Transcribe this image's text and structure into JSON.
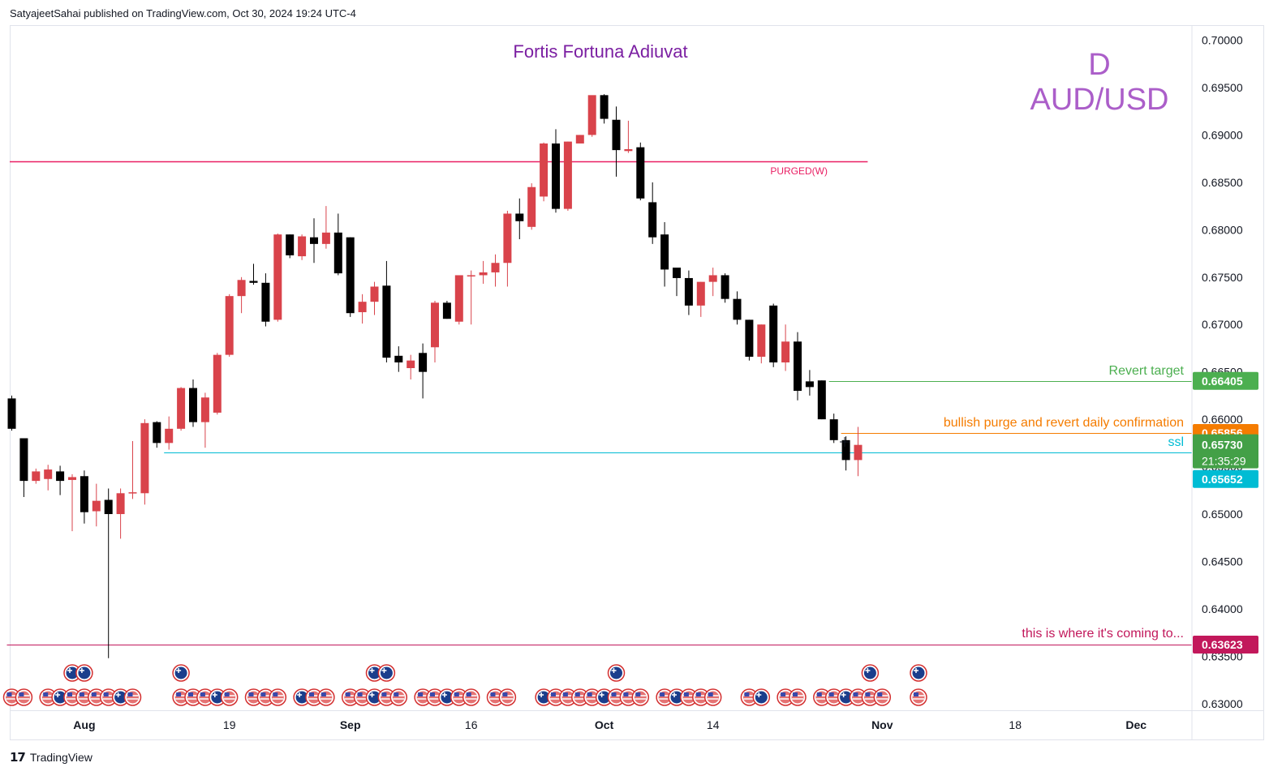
{
  "header": {
    "published_line": "SatyajeetSahai published on TradingView.com, Oct 30, 2024 19:24 UTC-4"
  },
  "footer": {
    "brand_label": "TradingView",
    "brand_icon": "tradingview-logo-icon"
  },
  "colors": {
    "bull": "#d9434b",
    "bear": "#000000",
    "purged_line": "#e91e63",
    "revert_target": "#4caf50",
    "confirmation": "#f57c00",
    "ssl": "#00bcd4",
    "target_low": "#c2185b",
    "title_purple": "#7b1fa2",
    "watermark": "#ab5ec9",
    "current_price_bg": "#43a047"
  },
  "chart_data": {
    "type": "candlestick",
    "symbol": "AUD/USD",
    "timeframe": "D",
    "title": "Fortis Fortuna Adiuvat",
    "y_axis": {
      "range": [
        0.6293,
        0.7015
      ],
      "tick_labels": [
        "0.70000",
        "0.69500",
        "0.69000",
        "0.68500",
        "0.68000",
        "0.67500",
        "0.67000",
        "0.66500",
        "0.66000",
        "0.65500",
        "0.65000",
        "0.64500",
        "0.64000",
        "0.63500",
        "0.63000"
      ],
      "tick_values": [
        0.7,
        0.695,
        0.69,
        0.685,
        0.68,
        0.675,
        0.67,
        0.665,
        0.66,
        0.655,
        0.65,
        0.645,
        0.64,
        0.635,
        0.63
      ]
    },
    "x_axis": {
      "labels": [
        {
          "text": "Aug",
          "bold": true,
          "index": 6
        },
        {
          "text": "19",
          "bold": false,
          "index": 18
        },
        {
          "text": "Sep",
          "bold": true,
          "index": 28
        },
        {
          "text": "16",
          "bold": false,
          "index": 38
        },
        {
          "text": "Oct",
          "bold": true,
          "index": 49
        },
        {
          "text": "14",
          "bold": false,
          "index": 58
        },
        {
          "text": "Nov",
          "bold": true,
          "index": 72
        },
        {
          "text": "18",
          "bold": false,
          "index": 83
        },
        {
          "text": "Dec",
          "bold": true,
          "index": 93
        }
      ]
    },
    "candles": [
      {
        "o": 0.6622,
        "h": 0.6625,
        "l": 0.6588,
        "c": 0.659
      },
      {
        "o": 0.658,
        "h": 0.658,
        "l": 0.6518,
        "c": 0.6535
      },
      {
        "o": 0.6535,
        "h": 0.6548,
        "l": 0.6532,
        "c": 0.6545
      },
      {
        "o": 0.6537,
        "h": 0.6552,
        "l": 0.6525,
        "c": 0.6547
      },
      {
        "o": 0.6545,
        "h": 0.6551,
        "l": 0.652,
        "c": 0.6535
      },
      {
        "o": 0.6536,
        "h": 0.6542,
        "l": 0.6482,
        "c": 0.6539
      },
      {
        "o": 0.654,
        "h": 0.6546,
        "l": 0.649,
        "c": 0.6502
      },
      {
        "o": 0.6503,
        "h": 0.6532,
        "l": 0.6487,
        "c": 0.6514
      },
      {
        "o": 0.6515,
        "h": 0.6527,
        "l": 0.6348,
        "c": 0.65
      },
      {
        "o": 0.65,
        "h": 0.6527,
        "l": 0.6474,
        "c": 0.6522
      },
      {
        "o": 0.6523,
        "h": 0.6577,
        "l": 0.6516,
        "c": 0.6523
      },
      {
        "o": 0.6522,
        "h": 0.66,
        "l": 0.651,
        "c": 0.6596
      },
      {
        "o": 0.6597,
        "h": 0.6598,
        "l": 0.657,
        "c": 0.6575
      },
      {
        "o": 0.6575,
        "h": 0.6603,
        "l": 0.6568,
        "c": 0.659
      },
      {
        "o": 0.659,
        "h": 0.6634,
        "l": 0.6588,
        "c": 0.6633
      },
      {
        "o": 0.6633,
        "h": 0.6642,
        "l": 0.6592,
        "c": 0.6597
      },
      {
        "o": 0.6597,
        "h": 0.6628,
        "l": 0.657,
        "c": 0.6623
      },
      {
        "o": 0.6607,
        "h": 0.667,
        "l": 0.6605,
        "c": 0.6668
      },
      {
        "o": 0.6668,
        "h": 0.6732,
        "l": 0.6666,
        "c": 0.673
      },
      {
        "o": 0.673,
        "h": 0.675,
        "l": 0.6712,
        "c": 0.6747
      },
      {
        "o": 0.6746,
        "h": 0.6764,
        "l": 0.6742,
        "c": 0.6744
      },
      {
        "o": 0.6744,
        "h": 0.6754,
        "l": 0.6698,
        "c": 0.6703
      },
      {
        "o": 0.6705,
        "h": 0.6796,
        "l": 0.6703,
        "c": 0.6795
      },
      {
        "o": 0.6795,
        "h": 0.6795,
        "l": 0.677,
        "c": 0.6773
      },
      {
        "o": 0.6772,
        "h": 0.6795,
        "l": 0.6768,
        "c": 0.6793
      },
      {
        "o": 0.6792,
        "h": 0.6812,
        "l": 0.6765,
        "c": 0.6785
      },
      {
        "o": 0.6785,
        "h": 0.6825,
        "l": 0.678,
        "c": 0.6797
      },
      {
        "o": 0.6797,
        "h": 0.6817,
        "l": 0.6752,
        "c": 0.6754
      },
      {
        "o": 0.6792,
        "h": 0.6792,
        "l": 0.6708,
        "c": 0.6712
      },
      {
        "o": 0.6713,
        "h": 0.6732,
        "l": 0.6701,
        "c": 0.6724
      },
      {
        "o": 0.6724,
        "h": 0.6745,
        "l": 0.671,
        "c": 0.674
      },
      {
        "o": 0.6741,
        "h": 0.6767,
        "l": 0.666,
        "c": 0.6665
      },
      {
        "o": 0.6667,
        "h": 0.6677,
        "l": 0.665,
        "c": 0.666
      },
      {
        "o": 0.6654,
        "h": 0.6668,
        "l": 0.6642,
        "c": 0.6662
      },
      {
        "o": 0.667,
        "h": 0.668,
        "l": 0.6622,
        "c": 0.665
      },
      {
        "o": 0.6676,
        "h": 0.6725,
        "l": 0.666,
        "c": 0.6723
      },
      {
        "o": 0.6723,
        "h": 0.6725,
        "l": 0.6706,
        "c": 0.6706
      },
      {
        "o": 0.6703,
        "h": 0.6745,
        "l": 0.67,
        "c": 0.6752
      },
      {
        "o": 0.6752,
        "h": 0.6757,
        "l": 0.67,
        "c": 0.6752
      },
      {
        "o": 0.6752,
        "h": 0.6767,
        "l": 0.6743,
        "c": 0.6755
      },
      {
        "o": 0.6755,
        "h": 0.6774,
        "l": 0.674,
        "c": 0.6765
      },
      {
        "o": 0.6765,
        "h": 0.682,
        "l": 0.674,
        "c": 0.6817
      },
      {
        "o": 0.6817,
        "h": 0.6833,
        "l": 0.679,
        "c": 0.6809
      },
      {
        "o": 0.6803,
        "h": 0.6849,
        "l": 0.68,
        "c": 0.6845
      },
      {
        "o": 0.6835,
        "h": 0.6892,
        "l": 0.683,
        "c": 0.6891
      },
      {
        "o": 0.6891,
        "h": 0.6906,
        "l": 0.6818,
        "c": 0.6822
      },
      {
        "o": 0.6822,
        "h": 0.6893,
        "l": 0.682,
        "c": 0.6893
      },
      {
        "o": 0.6891,
        "h": 0.69,
        "l": 0.6892,
        "c": 0.69
      },
      {
        "o": 0.69,
        "h": 0.694,
        "l": 0.6898,
        "c": 0.6942
      },
      {
        "o": 0.6942,
        "h": 0.6943,
        "l": 0.6912,
        "c": 0.6917
      },
      {
        "o": 0.6916,
        "h": 0.693,
        "l": 0.6856,
        "c": 0.6884
      },
      {
        "o": 0.6883,
        "h": 0.6915,
        "l": 0.6881,
        "c": 0.6885
      },
      {
        "o": 0.6887,
        "h": 0.6892,
        "l": 0.6831,
        "c": 0.6833
      },
      {
        "o": 0.6829,
        "h": 0.685,
        "l": 0.6785,
        "c": 0.6792
      },
      {
        "o": 0.6795,
        "h": 0.6808,
        "l": 0.674,
        "c": 0.6758
      },
      {
        "o": 0.676,
        "h": 0.6757,
        "l": 0.673,
        "c": 0.6749
      },
      {
        "o": 0.6749,
        "h": 0.6757,
        "l": 0.671,
        "c": 0.672
      },
      {
        "o": 0.672,
        "h": 0.6745,
        "l": 0.6708,
        "c": 0.6745
      },
      {
        "o": 0.6745,
        "h": 0.676,
        "l": 0.673,
        "c": 0.6752
      },
      {
        "o": 0.6752,
        "h": 0.6754,
        "l": 0.6723,
        "c": 0.6727
      },
      {
        "o": 0.6727,
        "h": 0.6735,
        "l": 0.67,
        "c": 0.6705
      },
      {
        "o": 0.6705,
        "h": 0.6705,
        "l": 0.6662,
        "c": 0.6666
      },
      {
        "o": 0.6666,
        "h": 0.67,
        "l": 0.6659,
        "c": 0.67
      },
      {
        "o": 0.672,
        "h": 0.6722,
        "l": 0.6655,
        "c": 0.666
      },
      {
        "o": 0.666,
        "h": 0.67,
        "l": 0.6651,
        "c": 0.6682
      },
      {
        "o": 0.6682,
        "h": 0.6692,
        "l": 0.662,
        "c": 0.663
      },
      {
        "o": 0.664,
        "h": 0.6652,
        "l": 0.6625,
        "c": 0.6634
      },
      {
        "o": 0.6641,
        "h": 0.6641,
        "l": 0.66,
        "c": 0.66
      },
      {
        "o": 0.66,
        "h": 0.6606,
        "l": 0.6575,
        "c": 0.6578
      },
      {
        "o": 0.6578,
        "h": 0.6582,
        "l": 0.6546,
        "c": 0.6557
      },
      {
        "o": 0.6557,
        "h": 0.6592,
        "l": 0.654,
        "c": 0.6573
      }
    ],
    "horizontal_lines": [
      {
        "name": "purged-line",
        "price": 0.6872,
        "label": "PURGED(W)",
        "color": "#e91e63",
        "x_end_index": 71
      },
      {
        "name": "revert-target-line",
        "price": 0.66405,
        "label": "Revert target",
        "color": "#4caf50",
        "x_start_index": 68,
        "price_label": "0.66405"
      },
      {
        "name": "confirmation-line",
        "price": 0.65856,
        "label": "bullish purge and revert daily confirmation",
        "color": "#f57c00",
        "x_start_index": 69,
        "price_label": "0.65856"
      },
      {
        "name": "ssl-line",
        "price": 0.65652,
        "label": "ssl",
        "color": "#00bcd4",
        "x_start_index": 13,
        "price_label": "0.65652"
      },
      {
        "name": "target-low-line",
        "price": 0.63623,
        "label": "this is where it's coming to...",
        "color": "#c2185b",
        "x_start_index": 0,
        "price_label": "0.63623"
      }
    ],
    "current_price": {
      "price": "0.65730",
      "countdown": "21:35:29",
      "value": 0.6573
    },
    "watermark": {
      "timeframe": "D",
      "symbol": "AUD/USD"
    },
    "event_markers": {
      "top_row_indices": [
        5,
        6,
        14,
        30,
        31,
        50,
        71,
        75
      ],
      "bottom_row_indices": [
        0,
        1,
        3,
        4,
        5,
        6,
        7,
        8,
        9,
        10,
        14,
        15,
        16,
        17,
        18,
        20,
        21,
        22,
        24,
        25,
        26,
        28,
        29,
        30,
        31,
        32,
        34,
        35,
        36,
        37,
        38,
        40,
        41,
        44,
        45,
        46,
        47,
        48,
        49,
        50,
        51,
        52,
        54,
        55,
        56,
        57,
        58,
        61,
        62,
        64,
        65,
        67,
        68,
        69,
        70,
        71,
        72,
        75
      ]
    }
  }
}
